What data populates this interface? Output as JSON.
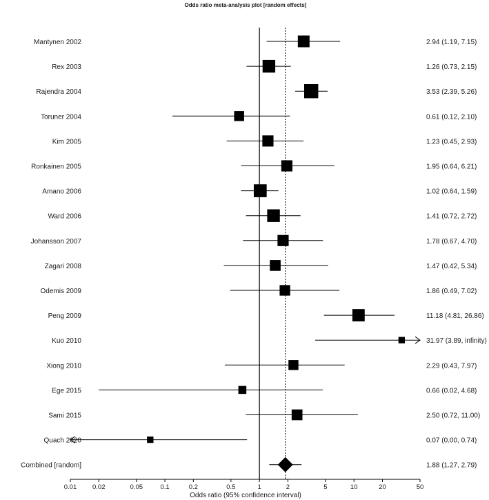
{
  "chart_data": {
    "type": "forest",
    "title": "Odds ratio meta-analysis plot [random effects]",
    "xlabel": "Odds ratio (95% confidence interval)",
    "xscale": "log",
    "xlim": [
      0.01,
      50
    ],
    "xticks": [
      0.01,
      0.02,
      0.05,
      0.1,
      0.2,
      0.5,
      1,
      2,
      5,
      10,
      20,
      50
    ],
    "xtick_labels": [
      "0.01",
      "0.02",
      "0.05",
      "0.1",
      "0.2",
      "0.5",
      "1",
      "2",
      "5",
      "10",
      "20",
      "50"
    ],
    "reference_line": 1,
    "combined_line": 1.88,
    "studies": [
      {
        "label": "Mantynen 2002",
        "or": 2.94,
        "lo": 1.19,
        "hi": 7.15,
        "ci_text": "2.94 (1.19, 7.15)",
        "weight": 1.0
      },
      {
        "label": "Rex 2003",
        "or": 1.26,
        "lo": 0.73,
        "hi": 2.15,
        "ci_text": "1.26 (0.73, 2.15)",
        "weight": 1.08
      },
      {
        "label": "Rajendra 2004",
        "or": 3.53,
        "lo": 2.39,
        "hi": 5.26,
        "ci_text": "3.53 (2.39, 5.26)",
        "weight": 1.2
      },
      {
        "label": "Toruner 2004",
        "or": 0.61,
        "lo": 0.12,
        "hi": 2.1,
        "ci_text": "0.61 (0.12, 2.10)",
        "weight": 0.85
      },
      {
        "label": "Kim 2005",
        "or": 1.23,
        "lo": 0.45,
        "hi": 2.93,
        "ci_text": "1.23 (0.45, 2.93)",
        "weight": 0.95
      },
      {
        "label": "Ronkainen 2005",
        "or": 1.95,
        "lo": 0.64,
        "hi": 6.21,
        "ci_text": "1.95 (0.64, 6.21)",
        "weight": 0.95
      },
      {
        "label": "Amano 2006",
        "or": 1.02,
        "lo": 0.64,
        "hi": 1.59,
        "ci_text": "1.02 (0.64, 1.59)",
        "weight": 1.1
      },
      {
        "label": "Ward 2006",
        "or": 1.41,
        "lo": 0.72,
        "hi": 2.72,
        "ci_text": "1.41 (0.72, 2.72)",
        "weight": 1.08
      },
      {
        "label": "Johansson 2007",
        "or": 1.78,
        "lo": 0.67,
        "hi": 4.7,
        "ci_text": "1.78 (0.67, 4.70)",
        "weight": 0.95
      },
      {
        "label": "Zagari 2008",
        "or": 1.47,
        "lo": 0.42,
        "hi": 5.34,
        "ci_text": "1.47 (0.42, 5.34)",
        "weight": 0.92
      },
      {
        "label": "Odemis 2009",
        "or": 1.86,
        "lo": 0.49,
        "hi": 7.02,
        "ci_text": "1.86 (0.49, 7.02)",
        "weight": 0.9
      },
      {
        "label": "Peng 2009",
        "or": 11.18,
        "lo": 4.81,
        "hi": 26.86,
        "ci_text": "11.18 (4.81, 26.86)",
        "weight": 1.05
      },
      {
        "label": "Kuo 2010",
        "or": 31.97,
        "lo": 3.89,
        "hi": null,
        "ci_text": "31.97 (3.89, infinity)",
        "weight": 0.55,
        "arrow": "right"
      },
      {
        "label": "Xiong 2010",
        "or": 2.29,
        "lo": 0.43,
        "hi": 7.97,
        "ci_text": "2.29 (0.43, 7.97)",
        "weight": 0.85
      },
      {
        "label": "Ege 2015",
        "or": 0.66,
        "lo": 0.02,
        "hi": 4.68,
        "ci_text": "0.66 (0.02, 4.68)",
        "weight": 0.68
      },
      {
        "label": "Sami 2015",
        "or": 2.5,
        "lo": 0.72,
        "hi": 11.0,
        "ci_text": "2.50 (0.72, 11.00)",
        "weight": 0.92
      },
      {
        "label": "Quach 2020",
        "or": 0.07,
        "lo": 0.0,
        "hi": 0.74,
        "ci_text": "0.07 (0.00, 0.74)",
        "weight": 0.55,
        "arrow": "left"
      }
    ],
    "combined": {
      "label": "Combined [random]",
      "or": 1.88,
      "lo": 1.27,
      "hi": 2.79,
      "ci_text": "1.88 (1.27, 2.79)"
    }
  },
  "colors": {
    "ink": "#000000",
    "text": "#1a1a1a",
    "background": "#ffffff"
  }
}
